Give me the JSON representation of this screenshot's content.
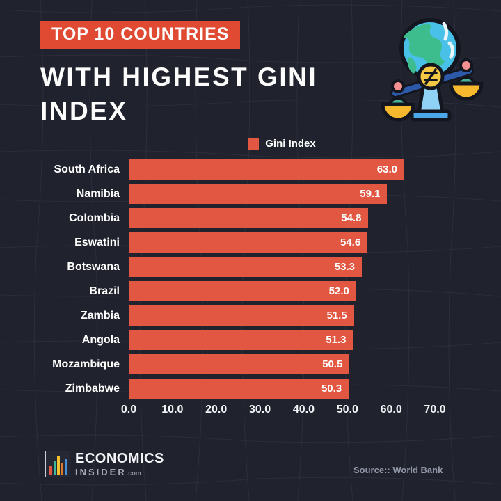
{
  "header": {
    "badge": "TOP 10 COUNTRIES",
    "title_line1": "WITH HIGHEST GINI",
    "title_line2": "INDEX"
  },
  "legend": {
    "label": "Gini Index"
  },
  "chart_data": {
    "type": "bar",
    "orientation": "horizontal",
    "title": "Top 10 Countries with Highest Gini Index",
    "legend_entries": [
      "Gini Index"
    ],
    "categories": [
      "South Africa",
      "Namibia",
      "Colombia",
      "Eswatini",
      "Botswana",
      "Brazil",
      "Zambia",
      "Angola",
      "Mozambique",
      "Zimbabwe"
    ],
    "values": [
      63.0,
      59.1,
      54.8,
      54.6,
      53.3,
      52.0,
      51.5,
      51.3,
      50.5,
      50.3
    ],
    "value_labels": [
      "63.0",
      "59.1",
      "54.8",
      "54.6",
      "53.3",
      "52.0",
      "51.5",
      "51.3",
      "50.5",
      "50.3"
    ],
    "xlim": [
      0,
      70
    ],
    "x_ticks": [
      "0.0",
      "10.0",
      "20.0",
      "30.0",
      "40.0",
      "50.0",
      "60.0",
      "70.0"
    ],
    "xlabel": "",
    "ylabel": "",
    "grid": false,
    "legend_position": "top-center"
  },
  "footer": {
    "brand_line1": "ECONOMICS",
    "brand_line2": "INSIDER",
    "brand_suffix": ".com",
    "source": "Source:: World Bank"
  },
  "icons": {
    "illustration": "globe-on-unequal-balance-scale-icon",
    "brand_icon": "bar-chart-logo-icon"
  },
  "colors": {
    "background": "#20222d",
    "grid_line": "#3a3e50",
    "badge": "#e04a32",
    "bar": "#e15742",
    "text_primary": "#f5f6fa",
    "text_muted": "#9096a5"
  }
}
